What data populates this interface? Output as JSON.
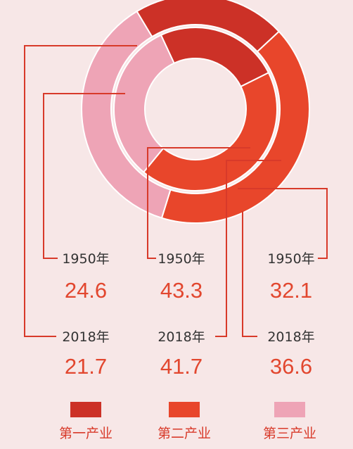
{
  "chart_data": {
    "type": "donut",
    "categories": [
      "第一产业",
      "第二产业",
      "第三产业"
    ],
    "colors": [
      "#cc3127",
      "#e8462b",
      "#eea4b6"
    ],
    "series": [
      {
        "name": "1950年",
        "values": [
          24.6,
          43.3,
          32.1
        ]
      },
      {
        "name": "2018年",
        "values": [
          21.7,
          41.7,
          36.6
        ]
      }
    ]
  }
}
